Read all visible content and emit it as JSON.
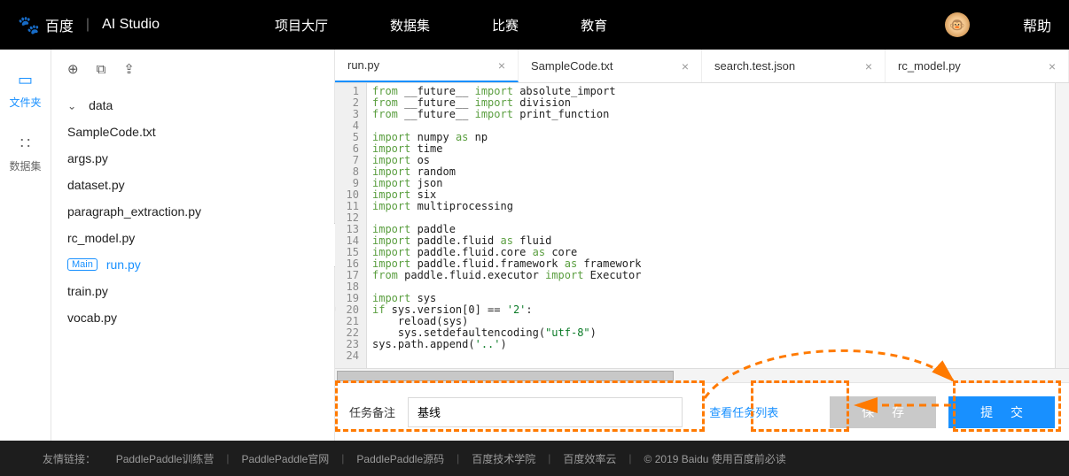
{
  "colors": {
    "accent": "#1890ff",
    "highlight": "#ff7a00",
    "topbar": "#000000",
    "footer": "#1d1d1d"
  },
  "topbar": {
    "brand_cn": "百度",
    "brand_en": "AI Studio",
    "nav": [
      "项目大厅",
      "数据集",
      "比赛",
      "教育"
    ],
    "help": "帮助"
  },
  "leftbar": {
    "items": [
      {
        "icon": "▭",
        "label": "文件夹",
        "active": true
      },
      {
        "icon": "∷",
        "label": "数据集",
        "active": false
      }
    ]
  },
  "filetree": {
    "folder": "data",
    "files": [
      "SampleCode.txt",
      "args.py",
      "dataset.py",
      "paragraph_extraction.py",
      "rc_model.py"
    ],
    "main_file": "run.py",
    "main_tag": "Main",
    "files_after": [
      "train.py",
      "vocab.py"
    ]
  },
  "tabs": [
    {
      "label": "run.py",
      "active": true
    },
    {
      "label": "SampleCode.txt",
      "active": false
    },
    {
      "label": "search.test.json",
      "active": false
    },
    {
      "label": "rc_model.py",
      "active": false
    }
  ],
  "code": {
    "start_line": 1,
    "lines": [
      [
        [
          "kw",
          "from"
        ],
        [
          "txt",
          " __future__ "
        ],
        [
          "kw",
          "import"
        ],
        [
          "txt",
          " absolute_import"
        ]
      ],
      [
        [
          "kw",
          "from"
        ],
        [
          "txt",
          " __future__ "
        ],
        [
          "kw",
          "import"
        ],
        [
          "txt",
          " division"
        ]
      ],
      [
        [
          "kw",
          "from"
        ],
        [
          "txt",
          " __future__ "
        ],
        [
          "kw",
          "import"
        ],
        [
          "txt",
          " print_function"
        ]
      ],
      [],
      [
        [
          "kw",
          "import"
        ],
        [
          "txt",
          " numpy "
        ],
        [
          "kw",
          "as"
        ],
        [
          "txt",
          " np"
        ]
      ],
      [
        [
          "kw",
          "import"
        ],
        [
          "txt",
          " time"
        ]
      ],
      [
        [
          "kw",
          "import"
        ],
        [
          "txt",
          " os"
        ]
      ],
      [
        [
          "kw",
          "import"
        ],
        [
          "txt",
          " random"
        ]
      ],
      [
        [
          "kw",
          "import"
        ],
        [
          "txt",
          " json"
        ]
      ],
      [
        [
          "kw",
          "import"
        ],
        [
          "txt",
          " six"
        ]
      ],
      [
        [
          "kw",
          "import"
        ],
        [
          "txt",
          " multiprocessing"
        ]
      ],
      [],
      [
        [
          "kw",
          "import"
        ],
        [
          "txt",
          " paddle"
        ]
      ],
      [
        [
          "kw",
          "import"
        ],
        [
          "txt",
          " paddle.fluid "
        ],
        [
          "kw",
          "as"
        ],
        [
          "txt",
          " fluid"
        ]
      ],
      [
        [
          "kw",
          "import"
        ],
        [
          "txt",
          " paddle.fluid.core "
        ],
        [
          "kw",
          "as"
        ],
        [
          "txt",
          " core"
        ]
      ],
      [
        [
          "kw",
          "import"
        ],
        [
          "txt",
          " paddle.fluid.framework "
        ],
        [
          "kw",
          "as"
        ],
        [
          "txt",
          " framework"
        ]
      ],
      [
        [
          "kw",
          "from"
        ],
        [
          "txt",
          " paddle.fluid.executor "
        ],
        [
          "kw",
          "import"
        ],
        [
          "txt",
          " Executor"
        ]
      ],
      [],
      [
        [
          "kw",
          "import"
        ],
        [
          "txt",
          " sys"
        ]
      ],
      [
        [
          "kw",
          "if"
        ],
        [
          "txt",
          " sys.version["
        ],
        [
          "txt",
          "0"
        ],
        [
          "txt",
          "] == "
        ],
        [
          "str",
          "'2'"
        ],
        [
          "txt",
          ":"
        ]
      ],
      [
        [
          "txt",
          "    reload(sys)"
        ]
      ],
      [
        [
          "txt",
          "    sys.setdefaultencoding("
        ],
        [
          "str",
          "\"utf-8\""
        ],
        [
          "txt",
          ")"
        ]
      ],
      [
        [
          "txt",
          "sys.path.append("
        ],
        [
          "str",
          "'..'"
        ],
        [
          "txt",
          ")"
        ]
      ],
      []
    ],
    "fold_line": 20
  },
  "bottom": {
    "task_label": "任务备注",
    "task_value": "基线",
    "view_list": "查看任务列表",
    "save": "保 存",
    "submit": "提 交"
  },
  "footer": {
    "prefix": "友情链接：",
    "links": [
      "PaddlePaddle训练营",
      "PaddlePaddle官网",
      "PaddlePaddle源码",
      "百度技术学院",
      "百度效率云"
    ],
    "copyright": "© 2019 Baidu 使用百度前必读"
  }
}
